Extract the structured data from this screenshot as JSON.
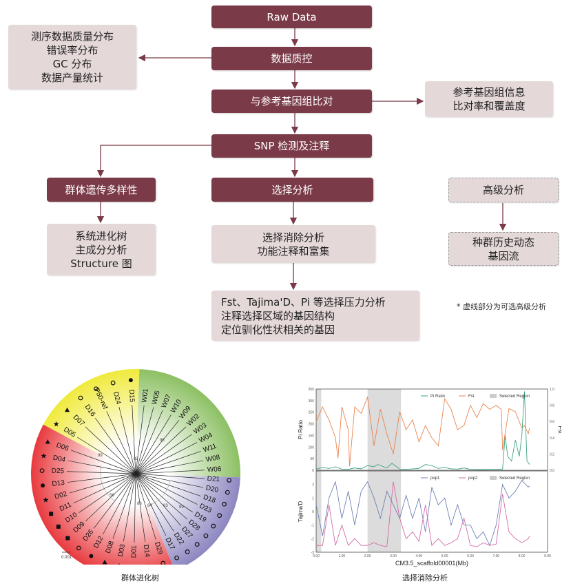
{
  "flow": {
    "raw_data": "Raw Data",
    "qc": "数据质控",
    "qc_outputs": [
      "测序数据质量分布",
      "错误率分布",
      "GC 分布",
      "数据产量统计"
    ],
    "align": "与参考基因组比对",
    "align_outputs": [
      "参考基因组信息",
      "比对率和覆盖度"
    ],
    "snp": "SNP 检测及注释",
    "diversity": "群体遗传多样性",
    "diversity_outputs": [
      "系统进化树",
      "主成分分析",
      "Structure 图"
    ],
    "selection": "选择分析",
    "selection_outputs": [
      "选择消除分析",
      "功能注释和富集"
    ],
    "selection_details": [
      "Fst、Tajima'D、Pi 等选择压力分析",
      "注释选择区域的基因结构",
      "定位驯化性状相关的基因"
    ],
    "advanced": "高级分析",
    "advanced_outputs": [
      "种群历史动态",
      "基因流"
    ],
    "note": "* 虚线部分为可选高级分析"
  },
  "colors": {
    "primary": "#7a3a48",
    "secondary": "#e5d8d9",
    "arrow": "#7a3a48"
  },
  "tree": {
    "caption": "群体进化树",
    "scale_label": "0.001",
    "bootstrap_labels": [
      "82",
      "99",
      "56",
      "95",
      "88",
      "84",
      "83",
      "99"
    ],
    "clade_colors": {
      "green": "#8cc063",
      "purple": "#8c86c0",
      "red": "#e8393e",
      "yellow": "#f0ea3c"
    },
    "clades": [
      {
        "color": "green",
        "leaves": [
          {
            "name": "W06",
            "marker": ""
          },
          {
            "name": "W08",
            "marker": ""
          },
          {
            "name": "W11",
            "marker": ""
          },
          {
            "name": "W04",
            "marker": ""
          },
          {
            "name": "W03",
            "marker": ""
          },
          {
            "name": "W02",
            "marker": ""
          },
          {
            "name": "W09",
            "marker": ""
          },
          {
            "name": "W10",
            "marker": ""
          },
          {
            "name": "W07",
            "marker": ""
          },
          {
            "name": "W05",
            "marker": ""
          },
          {
            "name": "W01",
            "marker": ""
          }
        ]
      },
      {
        "color": "yellow",
        "leaves": [
          {
            "name": "D15",
            "marker": "circle-filled"
          },
          {
            "name": "D24",
            "marker": "circle-open"
          },
          {
            "name": "P50-ref",
            "marker": "circle-open"
          },
          {
            "name": "D16",
            "marker": "circle-open"
          },
          {
            "name": "D07",
            "marker": "triangle"
          },
          {
            "name": "D05",
            "marker": "star"
          }
        ]
      },
      {
        "color": "red",
        "leaves": [
          {
            "name": "D06",
            "marker": "triangle"
          },
          {
            "name": "D04",
            "marker": "star"
          },
          {
            "name": "D25",
            "marker": "circle-open"
          },
          {
            "name": "D13",
            "marker": "circle-filled"
          },
          {
            "name": "D02",
            "marker": "star"
          },
          {
            "name": "D11",
            "marker": "square"
          },
          {
            "name": "D10",
            "marker": "square"
          },
          {
            "name": "D09",
            "marker": "square"
          },
          {
            "name": "D26",
            "marker": "circle-open"
          },
          {
            "name": "D12",
            "marker": "circle-filled"
          },
          {
            "name": "D08",
            "marker": "triangle"
          },
          {
            "name": "D03",
            "marker": "star"
          },
          {
            "name": "D01",
            "marker": "star"
          },
          {
            "name": "D14",
            "marker": "circle-filled"
          },
          {
            "name": "D29",
            "marker": "circle-open"
          }
        ]
      },
      {
        "color": "purple",
        "leaves": [
          {
            "name": "D17",
            "marker": "circle-open"
          },
          {
            "name": "D22",
            "marker": "circle-open"
          },
          {
            "name": "D27",
            "marker": "circle-open"
          },
          {
            "name": "D28",
            "marker": "circle-open"
          },
          {
            "name": "D19",
            "marker": "circle-open"
          },
          {
            "name": "D23",
            "marker": "circle-open"
          },
          {
            "name": "D18",
            "marker": "circle-open"
          },
          {
            "name": "D20",
            "marker": "circle-open"
          },
          {
            "name": "D21",
            "marker": "circle-open"
          }
        ]
      }
    ]
  },
  "chart_data": {
    "type": "line",
    "caption": "选择消除分析",
    "xlabel": "CM3.5_scaffold00001(Mb)",
    "xlim": [
      0,
      9
    ],
    "xticks": [
      "0.00",
      "1.00",
      "2.00",
      "3.00",
      "4.00",
      "5.00",
      "6.00",
      "7.00",
      "8.00",
      "9.00"
    ],
    "selected_regions": [
      [
        0,
        0.2
      ],
      [
        2.0,
        3.3
      ]
    ],
    "selected_color": "#dcdcdc",
    "panels": [
      {
        "ylabel": "Pi Ratio",
        "ylim": [
          0,
          350
        ],
        "yticks": [
          "0",
          "50",
          "100",
          "150",
          "200",
          "250",
          "300",
          "350"
        ],
        "y2label": "Fst",
        "y2lim": [
          0,
          1.0
        ],
        "y2ticks": [
          "0.0",
          "0.2",
          "0.4",
          "0.6",
          "0.8",
          "1.0"
        ],
        "legend": [
          "Pi Ratio",
          "Fst",
          "Selected Region"
        ],
        "series": [
          {
            "name": "Pi Ratio",
            "axis": "left",
            "color": "#3aa37e",
            "x": [
              0,
              0.25,
              0.5,
              0.75,
              1,
              1.25,
              1.5,
              1.75,
              2,
              2.25,
              2.4,
              2.75,
              2.95,
              3.25,
              3.5,
              4,
              4.25,
              4.5,
              4.75,
              5,
              5.25,
              5.5,
              5.75,
              6,
              6.5,
              7,
              7.25,
              7.35,
              7.45,
              7.6,
              7.75,
              7.9,
              8.0,
              8.1,
              8.2,
              8.3
            ],
            "y": [
              5,
              12,
              8,
              15,
              5,
              4,
              10,
              6,
              20,
              15,
              25,
              10,
              30,
              5,
              4,
              8,
              25,
              20,
              8,
              12,
              6,
              5,
              10,
              4,
              3,
              4,
              5,
              150,
              60,
              40,
              130,
              60,
              150,
              340,
              40,
              25
            ]
          },
          {
            "name": "Fst",
            "axis": "right",
            "color": "#e8834e",
            "x": [
              0,
              0.25,
              0.5,
              0.75,
              0.85,
              1,
              1.25,
              1.3,
              1.5,
              1.75,
              2,
              2.25,
              2.5,
              2.75,
              3,
              3.25,
              3.5,
              3.75,
              4,
              4.25,
              4.5,
              4.75,
              5,
              5.25,
              5.5,
              5.75,
              6,
              6.25,
              6.5,
              6.75,
              7,
              7.2,
              7.25,
              7.5,
              7.75,
              8,
              8.1,
              8.25,
              8.3
            ],
            "y": [
              0.6,
              0.78,
              0.62,
              0.4,
              0.15,
              0.78,
              0.5,
              0.05,
              0.78,
              0.7,
              0.9,
              0.3,
              0.75,
              0.45,
              0.2,
              0.72,
              0.5,
              0.62,
              0.35,
              0.55,
              0.4,
              0.3,
              0.88,
              0.75,
              0.5,
              0.55,
              0.8,
              0.65,
              0.82,
              0.75,
              0.8,
              0.75,
              0.25,
              0.76,
              0.72,
              0.52,
              0.55,
              0.45,
              0.52
            ]
          }
        ]
      },
      {
        "ylabel": "Tajima'D",
        "ylim": [
          -3,
          3
        ],
        "yticks": [
          "-3",
          "-2",
          "-1",
          "0",
          "1",
          "2"
        ],
        "legend": [
          "pop1",
          "pop2",
          "Selected Region"
        ],
        "series": [
          {
            "name": "pop1",
            "color": "#6f7fb5",
            "x": [
              0,
              0.25,
              0.5,
              0.75,
              1,
              1.25,
              1.5,
              1.75,
              2,
              2.25,
              2.5,
              2.75,
              3,
              3.25,
              3.5,
              3.75,
              4,
              4.25,
              4.5,
              4.75,
              5,
              5.25,
              5.5,
              5.75,
              6,
              6.25,
              6.5,
              6.75,
              7,
              7.25,
              7.5,
              7.75,
              8,
              8.25,
              8.3
            ],
            "y": [
              0.5,
              -1.8,
              1,
              2.2,
              -0.5,
              1.5,
              -1,
              1.5,
              2.2,
              1,
              -0.5,
              1.5,
              0.5,
              -0.5,
              1.2,
              -0.5,
              1,
              -1.5,
              1.8,
              0.5,
              1,
              -1,
              0.5,
              -1,
              -1,
              -2,
              -1.5,
              -2.5,
              -1,
              2,
              1,
              1.5,
              2.3,
              1.8,
              1.9
            ]
          },
          {
            "name": "pop2",
            "color": "#d36aa8",
            "x": [
              0,
              0.25,
              0.5,
              0.75,
              1,
              1.25,
              1.5,
              1.75,
              2,
              2.25,
              2.5,
              2.75,
              3,
              3.25,
              3.5,
              3.75,
              4,
              4.25,
              4.5,
              4.75,
              5,
              5.25,
              5.5,
              5.75,
              6,
              6.25,
              6.5,
              6.75,
              7,
              7.25,
              7.5,
              7.75,
              8,
              8.25,
              8.3
            ],
            "y": [
              -2.5,
              -2.5,
              0.5,
              -2.5,
              -1,
              -2.5,
              -2,
              -2.5,
              -2.5,
              -2.3,
              -2.5,
              -2.6,
              2.2,
              -0.5,
              -2,
              -1.5,
              -2.2,
              0.5,
              -2.5,
              -2,
              -2.5,
              -2.3,
              -2,
              -0.5,
              -2.5,
              -2.6,
              -2.3,
              -2.5,
              -2.4,
              1.3,
              -1.5,
              -2,
              -2.3,
              -2,
              -1.8
            ]
          }
        ]
      }
    ]
  }
}
